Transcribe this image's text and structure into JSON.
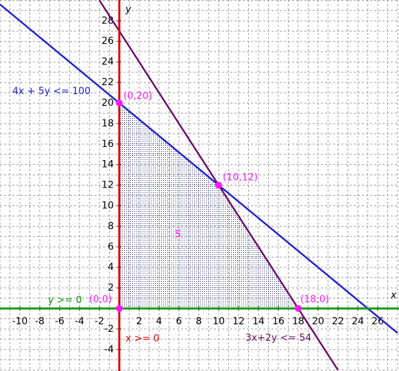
{
  "chart_data": {
    "type": "line",
    "xlabel": "x",
    "ylabel": "y",
    "xlim": [
      -12,
      28.14
    ],
    "ylim": [
      -6.09,
      30.03
    ],
    "xticks": [
      -10,
      -8,
      -6,
      -4,
      -2,
      2,
      4,
      6,
      8,
      10,
      12,
      14,
      16,
      18,
      20,
      22,
      24,
      26
    ],
    "yticks": [
      -4,
      -2,
      2,
      4,
      6,
      8,
      10,
      12,
      14,
      16,
      18,
      20,
      22,
      24,
      26,
      28
    ],
    "grid": true,
    "grid_step": 1,
    "series": [
      {
        "name": "4x + 5y <= 100",
        "color": "#1f1fd0",
        "x": [
          -12,
          28
        ],
        "values": [
          29.6,
          -2.4
        ]
      },
      {
        "name": "3x+2y <= 54",
        "color": "#6a0f6a",
        "x": [
          -2,
          22
        ],
        "values": [
          30,
          -6
        ]
      },
      {
        "name": "x >= 0",
        "color": "#e00000",
        "x": [
          0,
          0
        ],
        "values": [
          -6.09,
          30.03
        ]
      },
      {
        "name": "y >= 0",
        "color": "#119911",
        "x": [
          -12,
          28.14
        ],
        "values": [
          0,
          0
        ]
      }
    ],
    "region": {
      "label": "S",
      "color": "#1a1a6e",
      "x": [
        0,
        0,
        10,
        18
      ],
      "y": [
        0,
        20,
        12,
        0
      ]
    },
    "points": [
      {
        "label": "(0,0)",
        "x": 0,
        "y": 0
      },
      {
        "label": "(0,20)",
        "x": 0,
        "y": 20
      },
      {
        "label": "(10,12)",
        "x": 10,
        "y": 12
      },
      {
        "label": "(18,0)",
        "x": 18,
        "y": 0
      }
    ],
    "point_color": "#ff1aff"
  }
}
